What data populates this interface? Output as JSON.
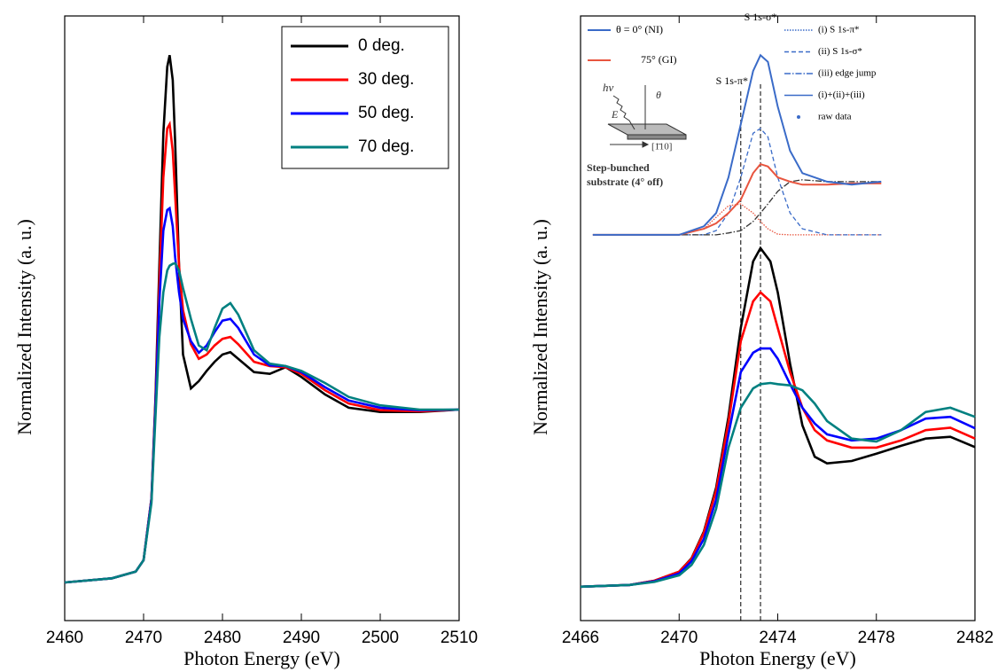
{
  "chart_data": [
    {
      "type": "line",
      "xlabel": "Photon Energy  (eV)",
      "ylabel": "Normalized Intensity  (a. u.)",
      "xlim": [
        2460,
        2510
      ],
      "xticks": [
        2460,
        2470,
        2480,
        2490,
        2500,
        2510
      ],
      "ylim": [
        0,
        100
      ],
      "legend": "upper right",
      "x": [
        2460,
        2466,
        2469,
        2470,
        2471,
        2471.5,
        2472,
        2472.5,
        2473,
        2473.3,
        2473.7,
        2474,
        2474.5,
        2475,
        2476,
        2477,
        2478,
        2479,
        2480,
        2481,
        2482,
        2484,
        2486,
        2488,
        2490,
        2493,
        2496,
        2500,
        2505,
        2510
      ],
      "series": [
        {
          "name": "0 deg.",
          "color": "#000000",
          "values": [
            6.3,
            7.0,
            8.1,
            10.0,
            20.2,
            36.7,
            58.7,
            80.6,
            91.6,
            93.5,
            89.4,
            79.2,
            58.7,
            44.0,
            38.4,
            39.6,
            41.3,
            42.8,
            44.0,
            44.4,
            43.3,
            41.1,
            40.8,
            41.9,
            40.3,
            37.4,
            35.2,
            34.5,
            34.5,
            34.9
          ]
        },
        {
          "name": "30 deg.",
          "color": "#ff0000",
          "values": [
            6.3,
            7.0,
            8.1,
            10.0,
            20.2,
            35.9,
            55.7,
            73.3,
            81.4,
            82.1,
            77.7,
            70.4,
            58.7,
            51.3,
            45.7,
            43.3,
            44.0,
            45.5,
            46.6,
            46.9,
            45.7,
            42.8,
            42.1,
            41.9,
            40.8,
            38.1,
            35.9,
            34.8,
            34.6,
            34.9
          ]
        },
        {
          "name": "50 deg.",
          "color": "#0000ff",
          "values": [
            6.3,
            7.0,
            8.1,
            10.0,
            20.0,
            35.2,
            52.8,
            64.5,
            67.9,
            68.2,
            65.2,
            60.1,
            54.3,
            49.9,
            46.2,
            44.3,
            45.5,
            47.7,
            49.6,
            49.9,
            48.4,
            44.0,
            42.2,
            42.1,
            41.1,
            38.6,
            36.4,
            35.2,
            34.8,
            34.9
          ]
        },
        {
          "name": "70 deg.",
          "color": "#008080",
          "values": [
            6.3,
            7.0,
            8.1,
            10.0,
            19.5,
            33.7,
            46.9,
            54.3,
            57.9,
            58.7,
            59.0,
            59.1,
            57.9,
            55.0,
            49.9,
            45.5,
            44.7,
            48.4,
            51.6,
            52.5,
            50.6,
            44.7,
            42.5,
            42.1,
            41.3,
            39.3,
            37.0,
            35.6,
            34.9,
            34.9
          ]
        }
      ]
    },
    {
      "type": "line",
      "xlabel": "Photon Energy  (eV)",
      "ylabel": "Normalized Intensity  (a. u.)",
      "xlim": [
        2466,
        2482
      ],
      "xticks": [
        2466,
        2470,
        2474,
        2478,
        2482
      ],
      "ylim": [
        0,
        100
      ],
      "x": [
        2466,
        2468,
        2469,
        2470,
        2470.5,
        2471,
        2471.5,
        2472,
        2472.5,
        2473,
        2473.3,
        2473.7,
        2474,
        2474.5,
        2475,
        2475.5,
        2476,
        2477,
        2478,
        2479,
        2480,
        2481,
        2482
      ],
      "series": [
        {
          "color": "#000000",
          "values": [
            5.6,
            5.9,
            6.6,
            8.1,
            10.3,
            14.7,
            22.0,
            33.7,
            48.4,
            59.4,
            61.6,
            59.4,
            54.3,
            42.5,
            32.3,
            27.1,
            26.0,
            26.4,
            27.6,
            28.9,
            30.1,
            30.4,
            28.7
          ]
        },
        {
          "color": "#ff0000",
          "values": [
            5.6,
            5.9,
            6.6,
            8.1,
            10.2,
            14.5,
            21.5,
            32.8,
            46.2,
            52.8,
            54.3,
            52.8,
            48.4,
            41.1,
            35.2,
            31.5,
            29.8,
            28.6,
            28.6,
            29.8,
            31.5,
            31.9,
            30.1
          ]
        },
        {
          "color": "#0000ff",
          "values": [
            5.6,
            5.9,
            6.5,
            7.8,
            9.8,
            13.5,
            20.0,
            30.8,
            41.1,
            44.3,
            45.0,
            45.0,
            43.3,
            39.1,
            35.2,
            32.6,
            30.8,
            29.8,
            30.1,
            31.5,
            33.4,
            33.7,
            31.8
          ]
        },
        {
          "color": "#008080",
          "values": [
            5.6,
            5.9,
            6.4,
            7.5,
            9.2,
            12.5,
            18.5,
            28.6,
            35.2,
            38.4,
            39.1,
            39.3,
            39.1,
            38.9,
            38.1,
            35.9,
            33.0,
            30.1,
            29.6,
            31.5,
            34.5,
            35.2,
            33.7
          ]
        }
      ],
      "vlines": [
        2472.5,
        2473.3
      ],
      "inset": {
        "x": [
          2466.5,
          2470,
          2471,
          2471.5,
          2472,
          2472.5,
          2473,
          2473.3,
          2473.6,
          2474,
          2474.5,
          2475,
          2476,
          2477,
          2478.2
        ],
        "series": [
          {
            "color": "#e8553f",
            "dash": "dotted",
            "values": [
              63.8,
              63.8,
              64.8,
              66.7,
              68.6,
              68.9,
              67.4,
              66.0,
              64.8,
              63.9,
              63.8,
              63.8,
              63.8,
              63.8,
              63.8
            ]
          },
          {
            "color": "#3a6bc8",
            "dash": "dashed",
            "values": [
              63.8,
              63.8,
              63.8,
              64.5,
              67.4,
              73.3,
              80.6,
              81.4,
              80.0,
              73.3,
              67.4,
              64.8,
              63.8,
              63.8,
              63.8
            ]
          },
          {
            "color": "#333333",
            "dash": "dashdot",
            "values": [
              63.8,
              63.8,
              63.8,
              63.8,
              64.1,
              64.5,
              66.0,
              67.4,
              68.9,
              71.0,
              72.6,
              72.9,
              72.6,
              72.6,
              72.6
            ]
          },
          {
            "color": "#e8553f",
            "dash": "solid",
            "values": [
              63.8,
              63.8,
              64.8,
              65.7,
              67.4,
              69.6,
              74.0,
              75.5,
              75.1,
              73.3,
              72.6,
              72.1,
              72.1,
              72.3,
              72.3
            ]
          },
          {
            "color": "#3a6bc8",
            "dash": "solid",
            "values": [
              63.8,
              63.8,
              65.2,
              67.4,
              73.3,
              82.1,
              90.9,
              93.5,
              92.4,
              85.0,
              77.7,
              74.0,
              72.6,
              72.1,
              72.6
            ]
          }
        ],
        "legend": [
          {
            "label": "θ =  0° (NI)",
            "color": "#3a6bc8"
          },
          {
            "label": "75° (GI)",
            "color": "#e8553f"
          }
        ],
        "style_legend": [
          {
            "label": "(i)  S 1s-π*",
            "dash": "dotted"
          },
          {
            "label": "(ii)  S 1s-σ*",
            "dash": "dashed"
          },
          {
            "label": "(iii) edge jump",
            "dash": "dashdot"
          },
          {
            "label": "(i)+(ii)+(iii)",
            "dash": "solid"
          },
          {
            "label": "raw data",
            "dash": "dot"
          }
        ],
        "annotations": [
          "S 1s-σ*",
          "S 1s-π*"
        ],
        "diagram_labels": [
          "hν",
          "E",
          "θ",
          "[1̄10]",
          "Step-bunched",
          "substrate (4° off)"
        ]
      }
    }
  ]
}
